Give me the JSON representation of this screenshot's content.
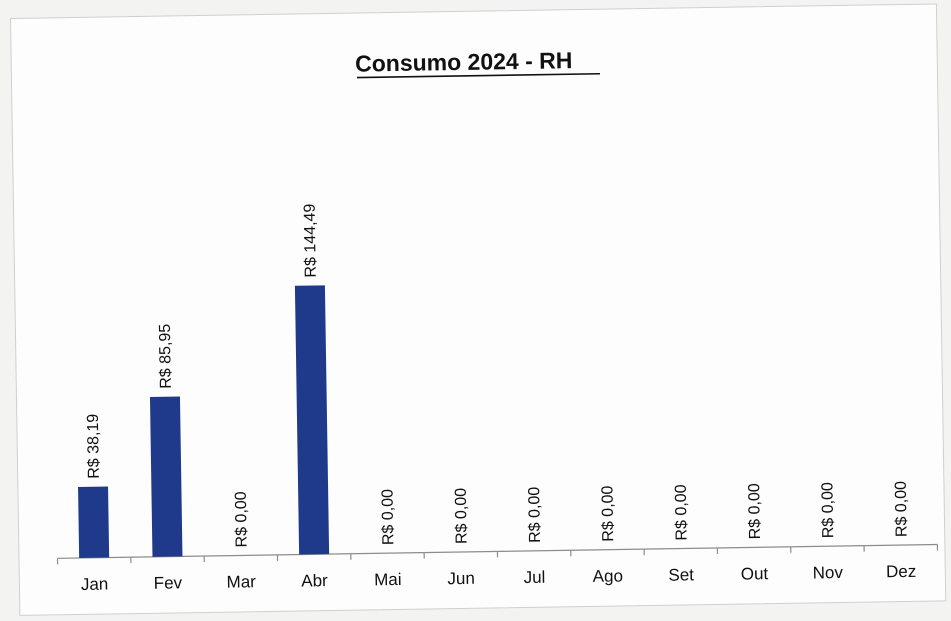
{
  "chart_data": {
    "type": "bar",
    "title": "Consumo 2024 - RH",
    "xlabel": "",
    "ylabel": "",
    "categories": [
      "Jan",
      "Fev",
      "Mar",
      "Abr",
      "Mai",
      "Jun",
      "Jul",
      "Ago",
      "Set",
      "Out",
      "Nov",
      "Dez"
    ],
    "values": [
      38.19,
      85.95,
      0.0,
      144.49,
      0.0,
      0.0,
      0.0,
      0.0,
      0.0,
      0.0,
      0.0,
      0.0
    ],
    "data_labels": [
      "R$ 38,19",
      "R$ 85,95",
      "R$ 0,00",
      "R$ 144,49",
      "R$ 0,00",
      "R$ 0,00",
      "R$ 0,00",
      "R$ 0,00",
      "R$ 0,00",
      "R$ 0,00",
      "R$ 0,00",
      "R$ 0,00"
    ],
    "ylim": [
      0,
      200
    ],
    "grid": false,
    "legend": "none",
    "bar_color": "#1f3a8a"
  }
}
